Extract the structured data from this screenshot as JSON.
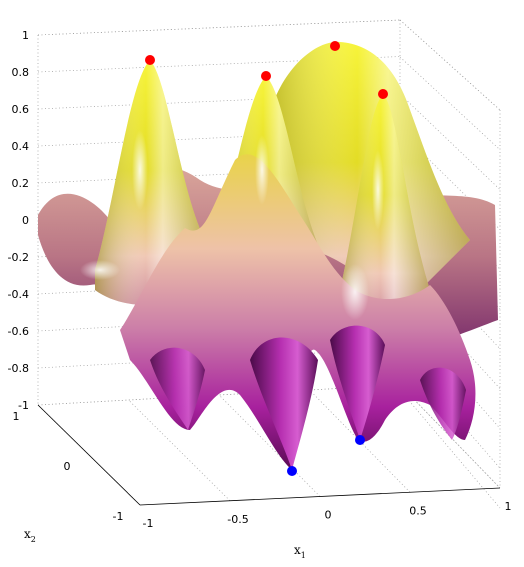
{
  "chart_data": {
    "type": "surface",
    "title": "",
    "xlabel": "x",
    "xlabel_sub": "1",
    "ylabel": "x",
    "ylabel_sub": "2",
    "zlabel": "",
    "xlim": [
      -1,
      1
    ],
    "ylim": [
      -1,
      1
    ],
    "zlim": [
      -1,
      1
    ],
    "x_ticks": [
      "-1",
      "-0.5",
      "0",
      "0.5",
      "1"
    ],
    "y_ticks": [
      "-1",
      "0",
      "1"
    ],
    "z_ticks": [
      "1",
      "0.8",
      "0.6",
      "0.4",
      "0.2",
      "0",
      "-0.2",
      "-0.4",
      "-0.6",
      "-0.8",
      "-1"
    ],
    "grid": true,
    "colors": {
      "high": "#f2ee2a",
      "mid": "#f1c9b7",
      "low": "#a11c9c",
      "max_marker": "#ff0000",
      "min_marker": "#0000ff"
    },
    "series": [
      {
        "marker": "max",
        "points": [
          {
            "x": -0.6,
            "y": 0.7,
            "z": 0.9
          },
          {
            "x": -0.1,
            "y": 0.6,
            "z": 0.86
          },
          {
            "x": 0.3,
            "y": 0.85,
            "z": 0.93
          },
          {
            "x": 0.55,
            "y": 0.35,
            "z": 0.82
          }
        ]
      },
      {
        "marker": "min",
        "points": [
          {
            "x": -0.2,
            "y": -0.4,
            "z": -1.0
          },
          {
            "x": 0.2,
            "y": -0.6,
            "z": -0.9
          }
        ]
      }
    ]
  }
}
